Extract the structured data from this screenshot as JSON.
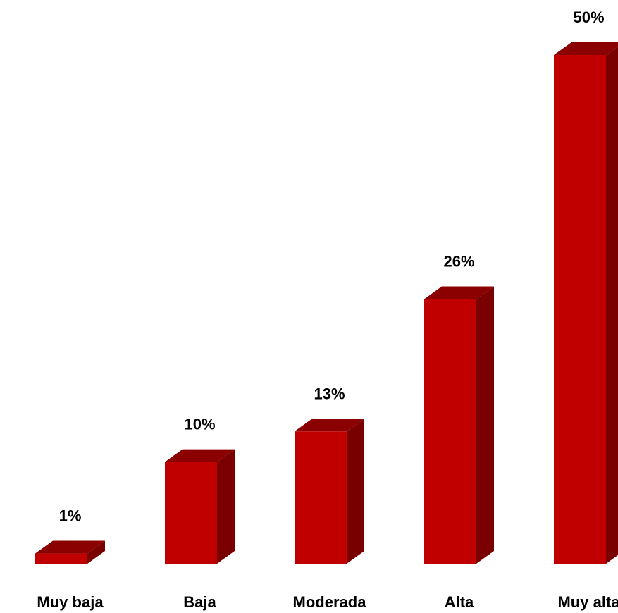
{
  "chart_data": {
    "type": "bar",
    "style": "3d-column",
    "categories": [
      "Muy baja",
      "Baja",
      "Moderada",
      "Alta",
      "Muy alta"
    ],
    "values": [
      1,
      10,
      13,
      26,
      50
    ],
    "value_labels": [
      "1%",
      "10%",
      "13%",
      "26%",
      "50%"
    ],
    "unit": "%",
    "title": "",
    "xlabel": "",
    "ylabel": "",
    "ylim": [
      0,
      50
    ],
    "grid": false,
    "legend": "none",
    "colors": {
      "front": "#C00000",
      "top": "#8B0000",
      "side": "#7A0000"
    }
  }
}
